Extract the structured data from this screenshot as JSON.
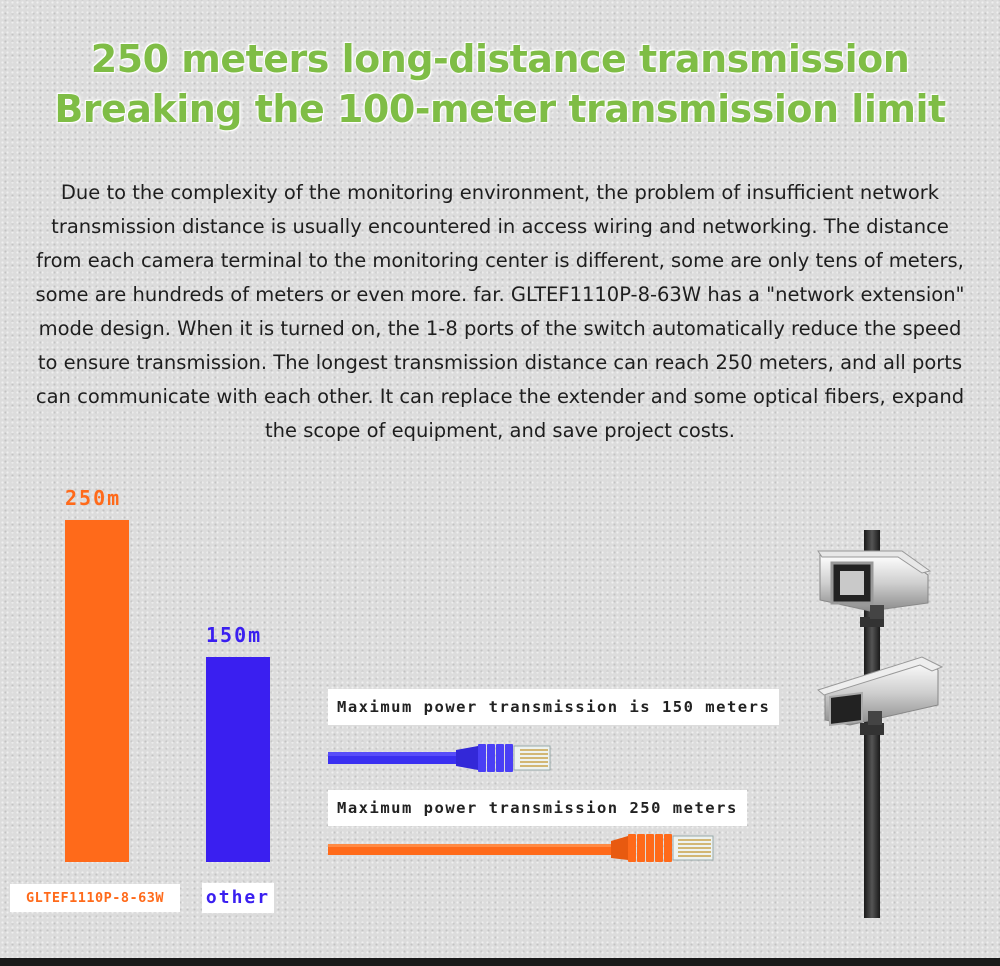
{
  "header": {
    "title_line1": "250 meters long-distance transmission",
    "title_line2": "Breaking the 100-meter transmission limit"
  },
  "description": "Due to the complexity of the monitoring environment, the problem of insufficient network transmission distance is usually encountered in access wiring and networking. The distance from each camera terminal to the monitoring center is different, some are only tens of meters, some are hundreds of meters or even more. far. GLTEF1110P-8-63W has a \"network extension\" mode design. When it is turned on, the 1-8 ports of the switch automatically reduce the speed to ensure transmission. The longest transmission distance can reach 250 meters, and all ports can communicate with each other. It can replace the extender and some optical fibers, expand the scope of equipment, and save project costs.",
  "chart_data": {
    "type": "bar",
    "categories": [
      "GLTEF1110P-8-63W",
      "other"
    ],
    "values": [
      250,
      150
    ],
    "value_labels": [
      "250m",
      "150m"
    ],
    "colors": [
      "#ff6a1a",
      "#3a1ff0"
    ],
    "ylim": [
      0,
      250
    ]
  },
  "cables": {
    "blue_caption": "Maximum power transmission is 150 meters",
    "orange_caption": "Maximum power transmission 250 meters",
    "blue_color": "#3a2ff0",
    "orange_color": "#ff6a1a"
  },
  "colors": {
    "title": "#7fbd46",
    "text": "#1e1e1e",
    "background": "#dcdcdc"
  },
  "icons": [
    "cctv-camera-icon",
    "rj45-cable-icon"
  ]
}
